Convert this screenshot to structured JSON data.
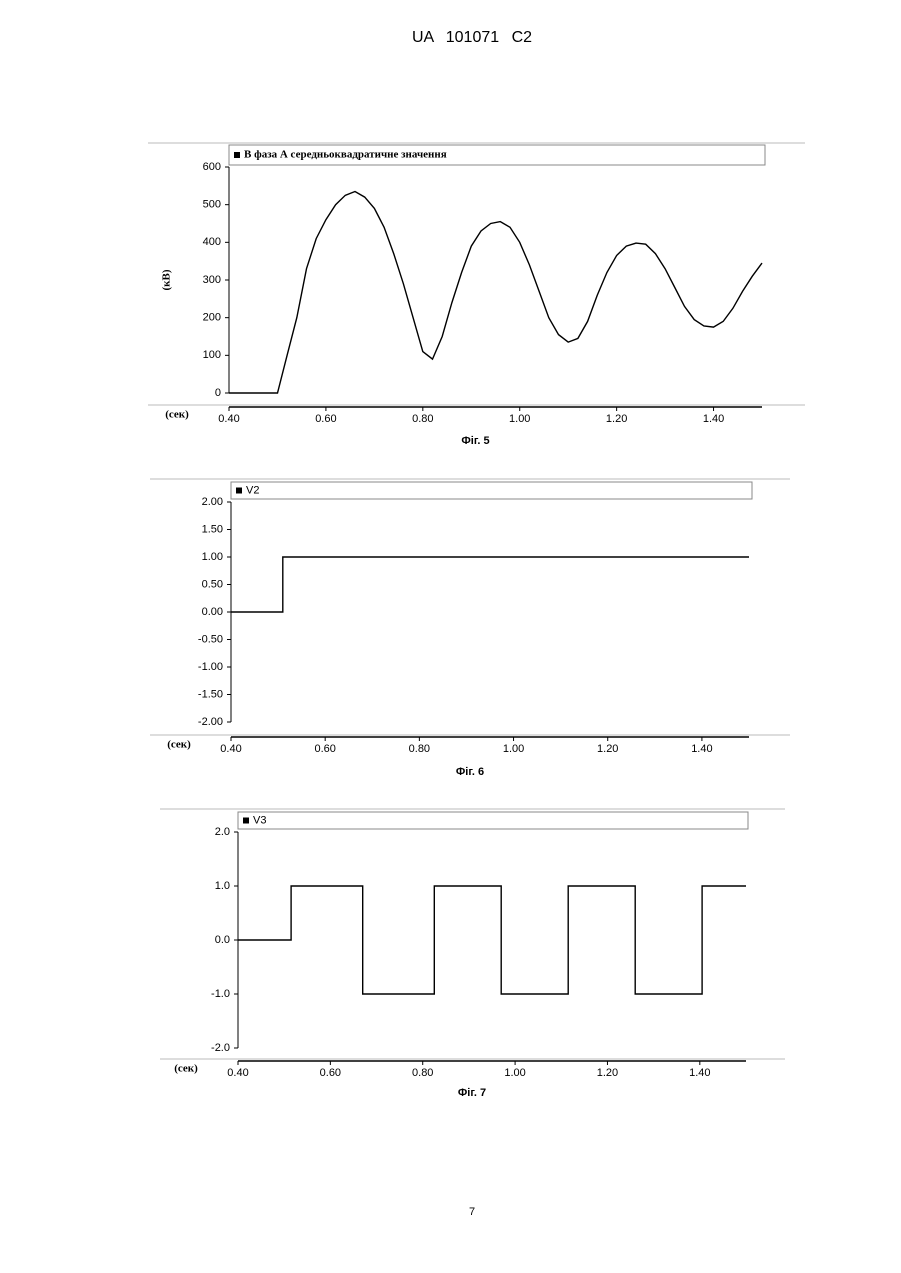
{
  "header": "UA 101071 C2",
  "page_number": "7",
  "chart_data": [
    {
      "type": "line",
      "caption": "Фіг. 5",
      "ylabel": "(кВ)",
      "xlabel": "(сек)",
      "x": [
        0.4,
        0.42,
        0.44,
        0.46,
        0.48,
        0.5,
        0.52,
        0.54,
        0.56,
        0.58,
        0.6,
        0.62,
        0.64,
        0.66,
        0.68,
        0.7,
        0.72,
        0.74,
        0.76,
        0.78,
        0.8,
        0.82,
        0.84,
        0.86,
        0.88,
        0.9,
        0.92,
        0.94,
        0.96,
        0.98,
        1.0,
        1.02,
        1.04,
        1.06,
        1.08,
        1.1,
        1.12,
        1.14,
        1.16,
        1.18,
        1.2,
        1.22,
        1.24,
        1.26,
        1.28,
        1.3,
        1.32,
        1.34,
        1.36,
        1.38,
        1.4,
        1.42,
        1.44,
        1.46,
        1.48,
        1.5
      ],
      "series": [
        {
          "name": "В фаза А середньоквадратичне значення",
          "color": "#000000",
          "values": [
            0,
            0,
            0,
            0,
            0,
            0,
            100,
            200,
            330,
            410,
            460,
            500,
            525,
            535,
            520,
            490,
            440,
            370,
            290,
            200,
            110,
            90,
            150,
            240,
            320,
            390,
            430,
            450,
            455,
            440,
            400,
            340,
            270,
            200,
            155,
            135,
            145,
            190,
            260,
            320,
            365,
            390,
            398,
            395,
            370,
            330,
            280,
            230,
            195,
            178,
            175,
            190,
            225,
            270,
            310,
            345
          ]
        }
      ],
      "xlim": [
        0.4,
        1.5
      ],
      "ylim": [
        0,
        600
      ],
      "xticks": [
        {
          "value": 0.4,
          "label": "0.40"
        },
        {
          "value": 0.6,
          "label": "0.60"
        },
        {
          "value": 0.8,
          "label": "0.80"
        },
        {
          "value": 1.0,
          "label": "1.00"
        },
        {
          "value": 1.2,
          "label": "1.20"
        },
        {
          "value": 1.4,
          "label": "1.40"
        }
      ],
      "yticks": [
        0,
        100,
        200,
        300,
        400,
        500,
        600
      ]
    },
    {
      "type": "line",
      "caption": "Фіг. 6",
      "xlabel": "(сек)",
      "x": [
        0.4,
        0.51,
        0.51,
        1.5
      ],
      "series": [
        {
          "name": "V2",
          "color": "#000000",
          "values": [
            0,
            0,
            1,
            1
          ]
        }
      ],
      "xlim": [
        0.4,
        1.5
      ],
      "ylim": [
        -2,
        2
      ],
      "xticks": [
        {
          "value": 0.4,
          "label": "0.40"
        },
        {
          "value": 0.6,
          "label": "0.60"
        },
        {
          "value": 0.8,
          "label": "0.80"
        },
        {
          "value": 1.0,
          "label": "1.00"
        },
        {
          "value": 1.2,
          "label": "1.20"
        },
        {
          "value": 1.4,
          "label": "1.40"
        }
      ],
      "yticks": [
        {
          "value": 2,
          "label": "2.00"
        },
        {
          "value": 1.5,
          "label": "1.50"
        },
        {
          "value": 1,
          "label": "1.00"
        },
        {
          "value": 0.5,
          "label": "0.50"
        },
        {
          "value": 0,
          "label": "0.00"
        },
        {
          "value": -0.5,
          "label": "-0.50"
        },
        {
          "value": -1,
          "label": "-1.00"
        },
        {
          "value": -1.5,
          "label": "-1.50"
        },
        {
          "value": -2,
          "label": "-2.00"
        }
      ]
    },
    {
      "type": "line",
      "caption": "Фіг. 7",
      "xlabel": "(сек)",
      "x": [
        0.4,
        0.515,
        0.515,
        0.67,
        0.67,
        0.825,
        0.825,
        0.97,
        0.97,
        1.115,
        1.115,
        1.26,
        1.26,
        1.405,
        1.405,
        1.5
      ],
      "series": [
        {
          "name": "V3",
          "color": "#000000",
          "values": [
            0,
            0,
            1,
            1,
            -1,
            -1,
            1,
            1,
            -1,
            -1,
            1,
            1,
            -1,
            -1,
            1,
            1
          ]
        }
      ],
      "xlim": [
        0.4,
        1.5
      ],
      "ylim": [
        -2,
        2
      ],
      "xticks": [
        {
          "value": 0.4,
          "label": "0.40"
        },
        {
          "value": 0.6,
          "label": "0.60"
        },
        {
          "value": 0.8,
          "label": "0.80"
        },
        {
          "value": 1.0,
          "label": "1.00"
        },
        {
          "value": 1.2,
          "label": "1.20"
        },
        {
          "value": 1.4,
          "label": "1.40"
        }
      ],
      "yticks": [
        {
          "value": 2,
          "label": "2.0"
        },
        {
          "value": 1,
          "label": "1.0"
        },
        {
          "value": 0,
          "label": "0.0"
        },
        {
          "value": -1,
          "label": "-1.0"
        },
        {
          "value": -2,
          "label": "-2.0"
        }
      ]
    }
  ]
}
